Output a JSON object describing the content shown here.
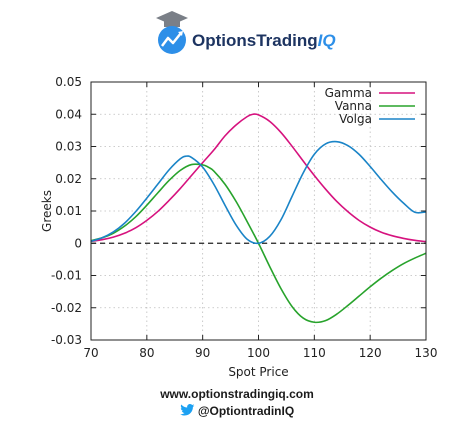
{
  "brand": {
    "name_part1": "Options",
    "name_part2": "Trading",
    "name_part3": "IQ",
    "colors": {
      "navy": "#1d3461",
      "blue": "#2d8fe8"
    }
  },
  "footer": {
    "website": "www.optionstradingiq.com",
    "twitter_handle": "@OptiontradinIQ",
    "twitter_icon": "twitter-bird-icon"
  },
  "chart_data": {
    "type": "line",
    "title": "",
    "xlabel": "Spot Price",
    "ylabel": "Greeks",
    "xlim": [
      70,
      130
    ],
    "ylim": [
      -0.03,
      0.05
    ],
    "xticks": [
      70,
      80,
      90,
      100,
      110,
      120,
      130
    ],
    "yticks": [
      -0.03,
      -0.02,
      -0.01,
      0,
      0.01,
      0.02,
      0.03,
      0.04,
      0.05
    ],
    "ytick_labels": [
      "-0.03",
      "-0.02",
      "-0.01",
      "0",
      "0.01",
      "0.02",
      "0.03",
      "0.04",
      "0.05"
    ],
    "grid": true,
    "legend_position": "top-right",
    "zero_line": 0,
    "series": [
      {
        "name": "Gamma",
        "color": "#d6127e",
        "x": [
          70,
          72,
          74,
          76,
          78,
          80,
          82,
          84,
          86,
          88,
          90,
          92,
          94,
          96,
          98,
          99,
          100,
          102,
          104,
          106,
          108,
          110,
          112,
          114,
          116,
          118,
          120,
          122,
          124,
          126,
          128,
          130
        ],
        "y": [
          0.0006,
          0.0011,
          0.0019,
          0.0031,
          0.0048,
          0.0071,
          0.0099,
          0.0133,
          0.017,
          0.021,
          0.025,
          0.0289,
          0.0333,
          0.0367,
          0.0393,
          0.04,
          0.0398,
          0.0378,
          0.0344,
          0.0301,
          0.0255,
          0.021,
          0.0168,
          0.013,
          0.0098,
          0.0071,
          0.005,
          0.0034,
          0.0023,
          0.0015,
          0.0009,
          0.0005
        ]
      },
      {
        "name": "Vanna",
        "color": "#28a32c",
        "x": [
          70,
          72,
          74,
          76,
          78,
          80,
          82,
          84,
          86,
          88,
          90,
          91,
          92,
          94,
          96,
          98,
          100,
          102,
          104,
          106,
          108,
          110,
          112,
          114,
          116,
          118,
          120,
          122,
          124,
          126,
          128,
          130
        ],
        "y": [
          0.0008,
          0.0017,
          0.0031,
          0.0053,
          0.0082,
          0.0118,
          0.0157,
          0.0195,
          0.0226,
          0.0244,
          0.0243,
          0.0236,
          0.0224,
          0.0183,
          0.0129,
          0.0066,
          0.0,
          -0.0072,
          -0.014,
          -0.0196,
          -0.0232,
          -0.0245,
          -0.024,
          -0.022,
          -0.0193,
          -0.0164,
          -0.0135,
          -0.0108,
          -0.0084,
          -0.0063,
          -0.0046,
          -0.0031
        ]
      },
      {
        "name": "Volga",
        "color": "#1a84c7",
        "x": [
          70,
          72,
          74,
          76,
          78,
          80,
          82,
          84,
          86,
          87,
          88,
          90,
          92,
          94,
          96,
          98,
          100,
          102,
          104,
          106,
          108,
          110,
          112,
          114,
          116,
          118,
          120,
          122,
          124,
          126,
          128,
          130
        ],
        "y": [
          0.0006,
          0.0017,
          0.0035,
          0.0062,
          0.0098,
          0.014,
          0.0184,
          0.0228,
          0.0262,
          0.027,
          0.0266,
          0.0236,
          0.0183,
          0.0118,
          0.0056,
          0.0012,
          0.0,
          0.0021,
          0.0072,
          0.0145,
          0.0218,
          0.0276,
          0.0308,
          0.0315,
          0.0303,
          0.0276,
          0.0238,
          0.0197,
          0.0158,
          0.0124,
          0.0096,
          0.0097
        ]
      }
    ]
  }
}
